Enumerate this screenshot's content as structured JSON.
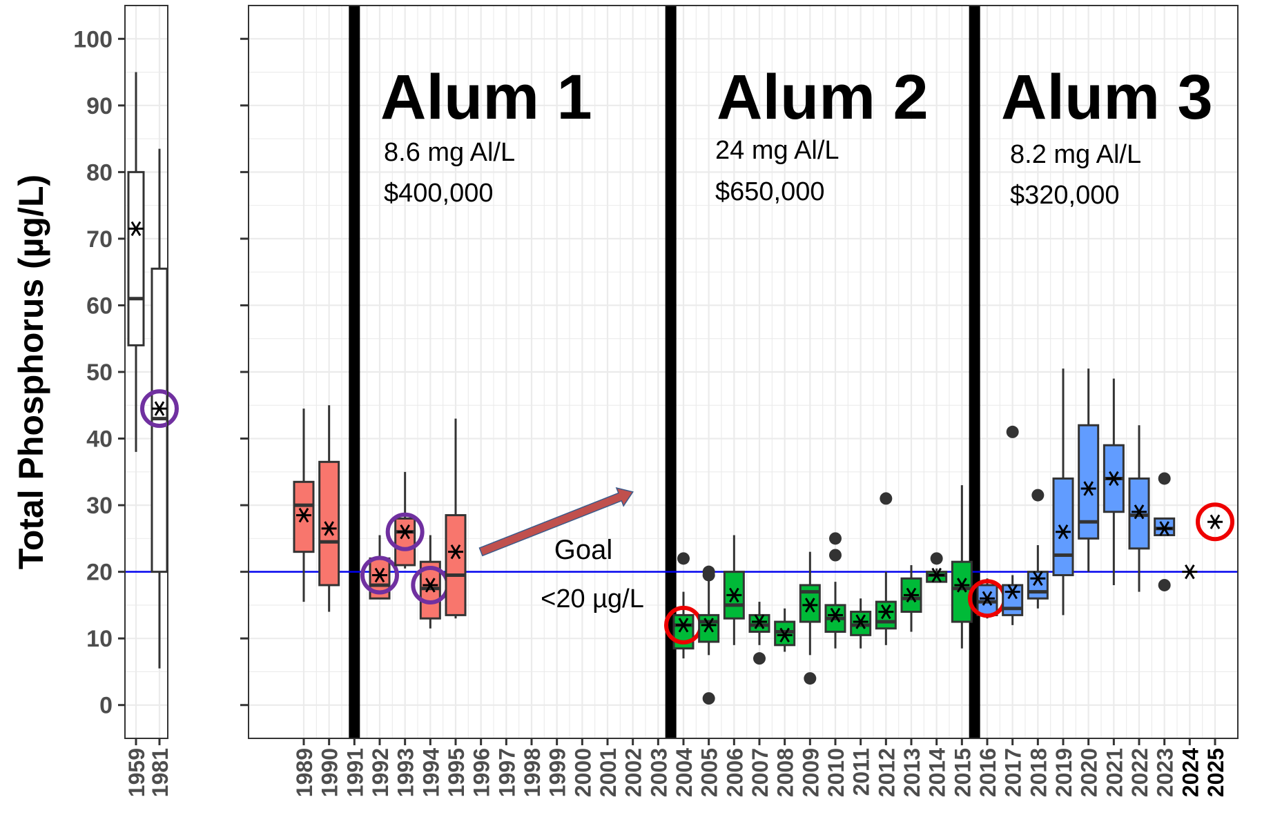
{
  "chart_data": {
    "type": "box",
    "ylabel": "Total Phosphorus (µg/L)",
    "ylim": [
      -5,
      105
    ],
    "yticks": [
      0,
      10,
      20,
      30,
      40,
      50,
      60,
      70,
      80,
      90,
      100
    ],
    "grid": true,
    "goal_line": {
      "value": 20,
      "color": "#0000ee",
      "label_line1": "Goal",
      "label_line2": "<20 µg/L"
    },
    "panels": [
      {
        "categories": [
          "1959",
          "1981"
        ]
      },
      {
        "categories": [
          "1989",
          "1990",
          "1991",
          "1992",
          "1993",
          "1994",
          "1995",
          "1996",
          "1997",
          "1998",
          "1999",
          "2000",
          "2001",
          "2002",
          "2003",
          "2004",
          "2005",
          "2006",
          "2007",
          "2008",
          "2009",
          "2010",
          "2011",
          "2012",
          "2013",
          "2014",
          "2015",
          "2016",
          "2017",
          "2018",
          "2019",
          "2020",
          "2021",
          "2022",
          "2023",
          "2024",
          "2025"
        ]
      }
    ],
    "bold_categories": [
      "2024",
      "2025"
    ],
    "colors": {
      "pre": "#ffffff",
      "alum1": "#f8766d",
      "alum2": "#00ba38",
      "alum3": "#619cff",
      "circle_purple": "#7030a0",
      "circle_red": "#ee0000",
      "arrow": "#c0504d"
    },
    "treatments": [
      {
        "name": "Alum 1",
        "dose": "8.6 mg Al/L",
        "cost": "$400,000",
        "year": "1991"
      },
      {
        "name": "Alum 2",
        "dose": "24 mg Al/L",
        "cost": "$650,000",
        "year": "2003.5"
      },
      {
        "name": "Alum 3",
        "dose": "8.2 mg Al/L",
        "cost": "$320,000",
        "year": "2015.5"
      }
    ],
    "series": [
      {
        "year": "1959",
        "group": "pre",
        "whisker_low": 38,
        "q1": 54,
        "median": 61,
        "q3": 80,
        "whisker_high": 95,
        "mean": 71.5,
        "outliers": []
      },
      {
        "year": "1981",
        "group": "pre",
        "whisker_low": 5.5,
        "q1": 20,
        "median": 43,
        "q3": 65.5,
        "whisker_high": 83.5,
        "mean": 44.5,
        "outliers": [],
        "circle": "purple"
      },
      {
        "year": "1989",
        "group": "alum1",
        "whisker_low": 15.5,
        "q1": 23,
        "median": 30,
        "q3": 33.5,
        "whisker_high": 44.5,
        "mean": 28.5,
        "outliers": []
      },
      {
        "year": "1990",
        "group": "alum1",
        "whisker_low": 14,
        "q1": 18,
        "median": 24.5,
        "q3": 36.5,
        "whisker_high": 45,
        "mean": 26.5,
        "outliers": []
      },
      {
        "year": "1992",
        "group": "alum1",
        "whisker_low": 16,
        "q1": 16,
        "median": 18,
        "q3": 22,
        "whisker_high": 25.5,
        "mean": 19.5,
        "outliers": [],
        "circle": "purple"
      },
      {
        "year": "1993",
        "group": "alum1",
        "whisker_low": 20.5,
        "q1": 21,
        "median": 26,
        "q3": 28,
        "whisker_high": 35,
        "mean": 26,
        "outliers": [],
        "circle": "purple"
      },
      {
        "year": "1994",
        "group": "alum1",
        "whisker_low": 11.5,
        "q1": 13,
        "median": 17.5,
        "q3": 21.5,
        "whisker_high": 25.5,
        "mean": 18,
        "outliers": [],
        "circle": "purple"
      },
      {
        "year": "1995",
        "group": "alum1",
        "whisker_low": 13,
        "q1": 13.5,
        "median": 19.5,
        "q3": 28.5,
        "whisker_high": 43,
        "mean": 23,
        "outliers": []
      },
      {
        "year": "2004",
        "group": "alum2",
        "whisker_low": 7,
        "q1": 8.5,
        "median": 12,
        "q3": 13.5,
        "whisker_high": 17,
        "mean": 12,
        "outliers": [
          22
        ],
        "circle": "red"
      },
      {
        "year": "2005",
        "group": "alum2",
        "whisker_low": 7.5,
        "q1": 9.5,
        "median": 12.5,
        "q3": 13.5,
        "whisker_high": 19,
        "mean": 12,
        "outliers": [
          1,
          19.5,
          20
        ]
      },
      {
        "year": "2006",
        "group": "alum2",
        "whisker_low": 9,
        "q1": 13,
        "median": 15,
        "q3": 20,
        "whisker_high": 25.5,
        "mean": 16.5,
        "outliers": []
      },
      {
        "year": "2007",
        "group": "alum2",
        "whisker_low": 9,
        "q1": 11,
        "median": 12,
        "q3": 13.5,
        "whisker_high": 15.5,
        "mean": 12.5,
        "outliers": [
          7
        ]
      },
      {
        "year": "2008",
        "group": "alum2",
        "whisker_low": 8,
        "q1": 9,
        "median": 11,
        "q3": 12.5,
        "whisker_high": 14.5,
        "mean": 10.5,
        "outliers": []
      },
      {
        "year": "2009",
        "group": "alum2",
        "whisker_low": 7.5,
        "q1": 12.5,
        "median": 17,
        "q3": 18,
        "whisker_high": 23,
        "mean": 15,
        "outliers": [
          4
        ]
      },
      {
        "year": "2010",
        "group": "alum2",
        "whisker_low": 8.5,
        "q1": 11,
        "median": 13,
        "q3": 15,
        "whisker_high": 18.5,
        "mean": 13.5,
        "outliers": [
          22.5,
          25
        ]
      },
      {
        "year": "2011",
        "group": "alum2",
        "whisker_low": 8.5,
        "q1": 10.5,
        "median": 12,
        "q3": 14,
        "whisker_high": 16,
        "mean": 12.5,
        "outliers": []
      },
      {
        "year": "2012",
        "group": "alum2",
        "whisker_low": 9,
        "q1": 11.5,
        "median": 12.5,
        "q3": 15.5,
        "whisker_high": 20,
        "mean": 14,
        "outliers": [
          31
        ]
      },
      {
        "year": "2013",
        "group": "alum2",
        "whisker_low": 11,
        "q1": 14,
        "median": 16,
        "q3": 19,
        "whisker_high": 21,
        "mean": 16.5,
        "outliers": []
      },
      {
        "year": "2014",
        "group": "alum2",
        "whisker_low": 18.5,
        "q1": 18.5,
        "median": 19.5,
        "q3": 20,
        "whisker_high": 20.5,
        "mean": 19.5,
        "outliers": [
          22
        ]
      },
      {
        "year": "2015",
        "group": "alum2",
        "whisker_low": 8.5,
        "q1": 12.5,
        "median": 17.5,
        "q3": 21.5,
        "whisker_high": 33,
        "mean": 18,
        "outliers": []
      },
      {
        "year": "2016",
        "group": "alum3",
        "whisker_low": 13,
        "q1": 13.5,
        "median": 15.5,
        "q3": 18,
        "whisker_high": 19,
        "mean": 16,
        "outliers": [],
        "circle": "red"
      },
      {
        "year": "2017",
        "group": "alum3",
        "whisker_low": 12,
        "q1": 13.5,
        "median": 14.5,
        "q3": 18,
        "whisker_high": 19.5,
        "mean": 17,
        "outliers": [
          41
        ]
      },
      {
        "year": "2018",
        "group": "alum3",
        "whisker_low": 14.5,
        "q1": 16,
        "median": 17,
        "q3": 20,
        "whisker_high": 24,
        "mean": 19,
        "outliers": [
          31.5
        ]
      },
      {
        "year": "2019",
        "group": "alum3",
        "whisker_low": 13.5,
        "q1": 19.5,
        "median": 22.5,
        "q3": 34,
        "whisker_high": 50.5,
        "mean": 26,
        "outliers": []
      },
      {
        "year": "2020",
        "group": "alum3",
        "whisker_low": 20,
        "q1": 25,
        "median": 27.5,
        "q3": 42,
        "whisker_high": 50.5,
        "mean": 32.5,
        "outliers": []
      },
      {
        "year": "2021",
        "group": "alum3",
        "whisker_low": 18,
        "q1": 29,
        "median": 34,
        "q3": 39,
        "whisker_high": 49,
        "mean": 34,
        "outliers": []
      },
      {
        "year": "2022",
        "group": "alum3",
        "whisker_low": 17,
        "q1": 23.5,
        "median": 28.5,
        "q3": 34,
        "whisker_high": 42,
        "mean": 29,
        "outliers": []
      },
      {
        "year": "2023",
        "group": "alum3",
        "whisker_low": 25.5,
        "q1": 25.5,
        "median": 26.5,
        "q3": 28,
        "whisker_high": 28,
        "mean": 26.5,
        "outliers": [
          18,
          34
        ]
      }
    ],
    "mean_only": [
      {
        "year": "2024",
        "mean": 20
      },
      {
        "year": "2025",
        "mean": 27.5,
        "circle": "red"
      }
    ],
    "annotation_arrow": {
      "from": [
        "1996",
        23
      ],
      "to": [
        "2002",
        32
      ]
    }
  }
}
